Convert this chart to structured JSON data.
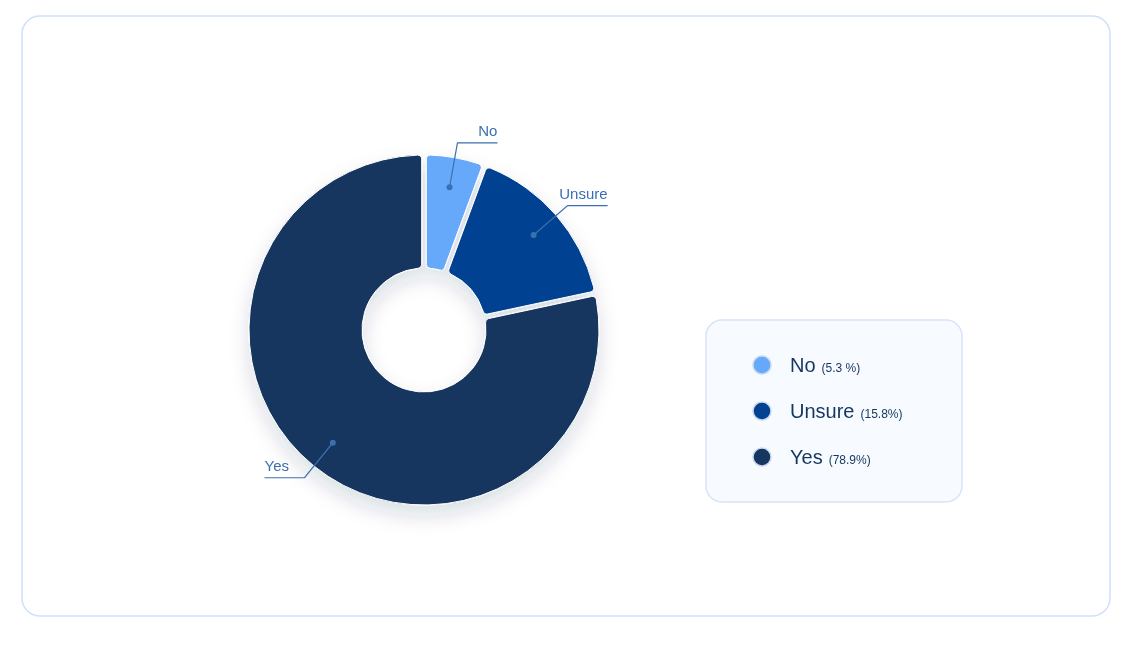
{
  "chart_data": {
    "type": "donut",
    "categories": [
      "No",
      "Unsure",
      "Yes"
    ],
    "values": [
      5.3,
      15.8,
      78.9
    ],
    "colors": [
      "#66a8fa",
      "#034291",
      "#14365f"
    ],
    "value_labels": [
      "(5.3 %)",
      "(15.8%)",
      "(78.9%)"
    ],
    "legend": "right"
  }
}
